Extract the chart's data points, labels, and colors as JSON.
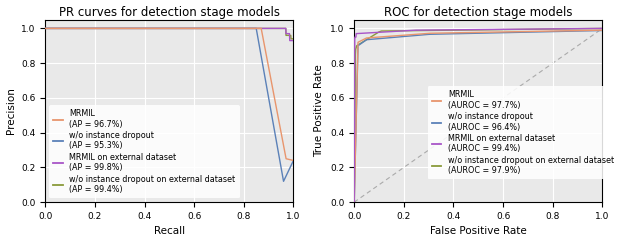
{
  "pr_title": "PR curves for detection stage models",
  "roc_title": "ROC for detection stage models",
  "pr_xlabel": "Recall",
  "pr_ylabel": "Precision",
  "roc_xlabel": "False Positive Rate",
  "roc_ylabel": "True Positive Rate",
  "colors": {
    "mrmil": "#e8956d",
    "wo_dropout": "#5b81b8",
    "mrmil_ext": "#a855c8",
    "wo_dropout_ext": "#8a9a3a"
  },
  "legend_pr": [
    {
      "label": "MRMIL\n(AP = 96.7%)",
      "color": "#e8956d"
    },
    {
      "label": "w/o instance dropout\n(AP = 95.3%)",
      "color": "#5b81b8"
    },
    {
      "label": "MRMIL on external dataset\n(AP = 99.8%)",
      "color": "#a855c8"
    },
    {
      "label": "w/o instance dropout on external dataset\n(AP = 99.4%)",
      "color": "#8a9a3a"
    }
  ],
  "legend_roc": [
    {
      "label": "MRMIL\n(AUROC = 97.7%)",
      "color": "#e8956d"
    },
    {
      "label": "w/o instance dropout\n(AUROC = 96.4%)",
      "color": "#5b81b8"
    },
    {
      "label": "MRMIL on external dataset\n(AUROC = 99.4%)",
      "color": "#a855c8"
    },
    {
      "label": "w/o instance dropout on external dataset\n(AUROC = 97.9%)",
      "color": "#8a9a3a"
    }
  ],
  "bg_color": "#e9e9e9",
  "grid_color": "white",
  "fontsize_title": 8.5,
  "fontsize_legend": 5.8,
  "fontsize_ticks": 6.5,
  "fontsize_label": 7.5
}
